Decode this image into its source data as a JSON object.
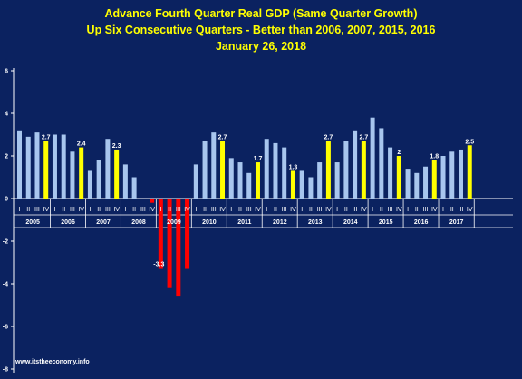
{
  "chart_data": {
    "type": "bar",
    "title_lines": [
      "Advance Fourth Quarter Real GDP (Same Quarter Growth)",
      "Up Six Consecutive Quarters - Better than 2006, 2007, 2015, 2016",
      "January 26, 2018"
    ],
    "xlabel": "",
    "ylabel": "",
    "ylim": [
      -8,
      6
    ],
    "y_ticks": [
      -8,
      -6,
      -4,
      -2,
      0,
      2,
      4,
      6
    ],
    "grid": false,
    "legend": "none",
    "quarter_labels": [
      "I",
      "II",
      "III",
      "IV"
    ],
    "years": [
      "2005",
      "2006",
      "2007",
      "2008",
      "2009",
      "2010",
      "2011",
      "2012",
      "2013",
      "2014",
      "2015",
      "2016",
      "2017"
    ],
    "values": [
      3.2,
      2.9,
      3.1,
      2.7,
      3.0,
      3.0,
      2.2,
      2.4,
      1.3,
      1.8,
      2.8,
      2.3,
      1.6,
      1.0,
      0.0,
      -0.2,
      -3.3,
      -4.2,
      -4.6,
      -3.3,
      1.6,
      2.7,
      3.1,
      2.7,
      1.9,
      1.7,
      1.2,
      1.7,
      2.8,
      2.6,
      2.4,
      1.3,
      1.3,
      1.0,
      1.7,
      2.7,
      1.7,
      2.7,
      3.2,
      2.7,
      3.8,
      3.3,
      2.4,
      2.0,
      1.4,
      1.2,
      1.5,
      1.8,
      2.0,
      2.2,
      2.3,
      2.5
    ],
    "data_labels": [
      {
        "index": 3,
        "text": "2.7"
      },
      {
        "index": 7,
        "text": "2.4"
      },
      {
        "index": 11,
        "text": "2.3"
      },
      {
        "index": 16,
        "text": "-3.3"
      },
      {
        "index": 23,
        "text": "2.7"
      },
      {
        "index": 27,
        "text": "1.7"
      },
      {
        "index": 31,
        "text": "1.3"
      },
      {
        "index": 35,
        "text": "2.7"
      },
      {
        "index": 39,
        "text": "2.7"
      },
      {
        "index": 43,
        "text": "2"
      },
      {
        "index": 47,
        "text": "1.8"
      },
      {
        "index": 51,
        "text": "2.5"
      }
    ],
    "colors": {
      "normal": "#a8c6ee",
      "q4": "#ffff00",
      "negative": "#ff0000",
      "axis": "#ffffff",
      "background": "#0b2260",
      "title": "#ffff00"
    }
  },
  "credit": "www.itstheeconomy.info"
}
